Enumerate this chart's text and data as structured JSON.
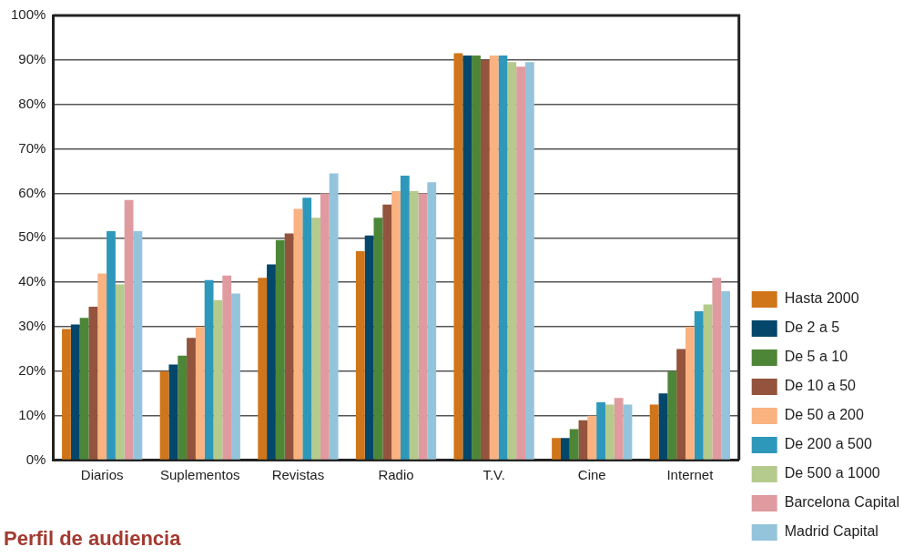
{
  "chart_data": {
    "type": "bar",
    "title": "Perfil de audiencia",
    "categories": [
      "Diarios",
      "Suplementos",
      "Revistas",
      "Radio",
      "T.V.",
      "Cine",
      "Internet"
    ],
    "series": [
      {
        "name": "Hasta 2000",
        "color": "#d07519",
        "values": [
          29.5,
          20,
          41,
          47,
          91.5,
          5,
          12.5
        ]
      },
      {
        "name": "De 2 a 5",
        "color": "#04476b",
        "values": [
          30.5,
          21.5,
          44,
          50.5,
          91,
          5,
          15
        ]
      },
      {
        "name": "De 5 a 10",
        "color": "#4e8638",
        "values": [
          32,
          23.5,
          49.5,
          54.5,
          91,
          7,
          20
        ]
      },
      {
        "name": "De 10 a 50",
        "color": "#93533c",
        "values": [
          34.5,
          27.5,
          51,
          57.5,
          90,
          9,
          25
        ]
      },
      {
        "name": "De 50 a 200",
        "color": "#f9b280",
        "values": [
          42,
          30,
          56.5,
          60.5,
          91,
          10,
          30
        ]
      },
      {
        "name": "De 200 a 500",
        "color": "#2e98bb",
        "values": [
          51.5,
          40.5,
          59,
          64,
          91,
          13,
          33.5
        ]
      },
      {
        "name": "De 500 a 1000",
        "color": "#b5ca8d",
        "values": [
          39.5,
          36,
          54.5,
          60.5,
          89.5,
          12.5,
          35
        ]
      },
      {
        "name": "Barcelona Capital",
        "color": "#df9b9f",
        "values": [
          58.5,
          41.5,
          60,
          60,
          88.5,
          14,
          41
        ]
      },
      {
        "name": "Madrid Capital",
        "color": "#94c4dc",
        "values": [
          51.5,
          37.5,
          64.5,
          62.5,
          89.5,
          12.5,
          38
        ]
      }
    ],
    "ylim": [
      0,
      100
    ],
    "yticks": [
      {
        "value": 0,
        "label": "0%"
      },
      {
        "value": 10,
        "label": "10%"
      },
      {
        "value": 20,
        "label": "20%"
      },
      {
        "value": 30,
        "label": "30%"
      },
      {
        "value": 40,
        "label": "40%"
      },
      {
        "value": 50,
        "label": "50%"
      },
      {
        "value": 60,
        "label": "60%"
      },
      {
        "value": 70,
        "label": "70%"
      },
      {
        "value": 80,
        "label": "80%"
      },
      {
        "value": 90,
        "label": "90%"
      },
      {
        "value": 100,
        "label": "100%"
      }
    ],
    "grid": "y",
    "legend": "bottom right"
  }
}
